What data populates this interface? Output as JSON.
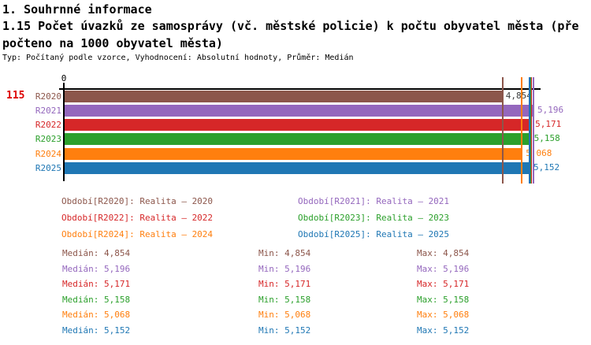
{
  "header": {
    "section_title": "1. Souhrnné informace",
    "subtitle_line1": "1.15 Počet úvazků ze samosprávy (vč. městské policie) k počtu obyvatel města (pře",
    "subtitle_line2": "počteno na 1000 obyvatel města)",
    "meta": "Typ: Počítaný podle vzorce, Vyhodnocení: Absolutní hodnoty, Průměr: Medián"
  },
  "row_number": {
    "value": "115",
    "color": "#dd0000"
  },
  "chart_data": {
    "type": "bar",
    "orientation": "horizontal",
    "title": "1.15 Počet úvazků ze samosprávy (vč. městské policie) k počtu obyvatel města (přepočteno na 1000 obyvatel města)",
    "x_origin_label": "0",
    "xlim": [
      0,
      5.196
    ],
    "grid": false,
    "categories": [
      "R2020",
      "R2021",
      "R2022",
      "R2023",
      "R2024",
      "R2025"
    ],
    "values": [
      4.854,
      5.196,
      5.171,
      5.158,
      5.068,
      5.152
    ],
    "value_labels": [
      "4,854",
      "5,196",
      "5,171",
      "5,158",
      "5,068",
      "5,152"
    ],
    "colors": [
      "#8c564b",
      "#9467bd",
      "#d62728",
      "#2ca02c",
      "#ff7f0e",
      "#1f77b4"
    ],
    "median_marker_values": [
      4.854,
      5.196,
      5.171,
      5.158,
      5.068,
      5.152
    ],
    "series_meta": [
      {
        "name": "R2020",
        "period": "Realita – 2020",
        "median": "4,854",
        "min": "4,854",
        "max": "4,854"
      },
      {
        "name": "R2021",
        "period": "Realita – 2021",
        "median": "5,196",
        "min": "5,196",
        "max": "5,196"
      },
      {
        "name": "R2022",
        "period": "Realita – 2022",
        "median": "5,171",
        "min": "5,171",
        "max": "5,171"
      },
      {
        "name": "R2023",
        "period": "Realita – 2023",
        "median": "5,158",
        "min": "5,158",
        "max": "5,158"
      },
      {
        "name": "R2024",
        "period": "Realita – 2024",
        "median": "5,068",
        "min": "5,068",
        "max": "5,068"
      },
      {
        "name": "R2025",
        "period": "Realita – 2025",
        "median": "5,152",
        "min": "5,152",
        "max": "5,152"
      }
    ],
    "legend_position": "below",
    "legend": {
      "columns": [
        [
          {
            "label": "Období[R2020]: Realita – 2020",
            "color": "#8c564b"
          },
          {
            "label": "Období[R2022]: Realita – 2022",
            "color": "#d62728"
          },
          {
            "label": "Období[R2024]: Realita – 2024",
            "color": "#ff7f0e"
          }
        ],
        [
          {
            "label": "Období[R2021]: Realita – 2021",
            "color": "#9467bd"
          },
          {
            "label": "Období[R2023]: Realita – 2023",
            "color": "#2ca02c"
          },
          {
            "label": "Období[R2025]: Realita – 2025",
            "color": "#1f77b4"
          }
        ]
      ]
    },
    "stats_labels": {
      "median": "Medián",
      "min": "Min",
      "max": "Max"
    },
    "stats_rows": [
      {
        "color": "#8c564b",
        "median": "4,854",
        "min": "4,854",
        "max": "4,854"
      },
      {
        "color": "#9467bd",
        "median": "5,196",
        "min": "5,196",
        "max": "5,196"
      },
      {
        "color": "#d62728",
        "median": "5,171",
        "min": "5,171",
        "max": "5,171"
      },
      {
        "color": "#2ca02c",
        "median": "5,158",
        "min": "5,158",
        "max": "5,158"
      },
      {
        "color": "#ff7f0e",
        "median": "5,068",
        "min": "5,068",
        "max": "5,068"
      },
      {
        "color": "#1f77b4",
        "median": "5,152",
        "min": "5,152",
        "max": "5,152"
      }
    ]
  }
}
